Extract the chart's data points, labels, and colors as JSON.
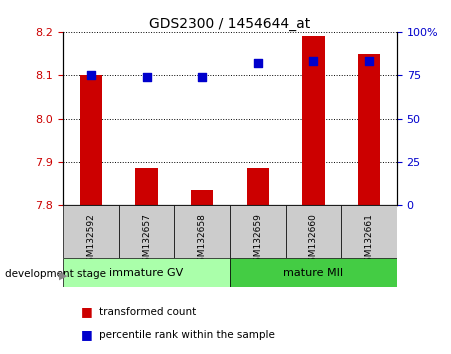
{
  "title": "GDS2300 / 1454644_at",
  "samples": [
    "GSM132592",
    "GSM132657",
    "GSM132658",
    "GSM132659",
    "GSM132660",
    "GSM132661"
  ],
  "red_values": [
    8.1,
    7.885,
    7.835,
    7.885,
    8.19,
    8.15
  ],
  "blue_values": [
    75.0,
    74.0,
    74.0,
    82.0,
    83.0,
    83.0
  ],
  "ylim_left": [
    7.8,
    8.2
  ],
  "ylim_right": [
    0,
    100
  ],
  "yticks_left": [
    7.8,
    7.9,
    8.0,
    8.1,
    8.2
  ],
  "yticks_right": [
    0,
    25,
    50,
    75,
    100
  ],
  "groups": [
    {
      "label": "immature GV",
      "start": 0,
      "end": 3,
      "color": "#aaffaa"
    },
    {
      "label": "mature MII",
      "start": 3,
      "end": 6,
      "color": "#44cc44"
    }
  ],
  "group_label": "development stage",
  "legend_items": [
    {
      "label": "transformed count",
      "color": "#cc0000"
    },
    {
      "label": "percentile rank within the sample",
      "color": "#0000cc"
    }
  ],
  "bar_color": "#cc0000",
  "dot_color": "#0000cc",
  "bar_width": 0.4,
  "dot_size": 30,
  "left_tick_color": "#cc0000",
  "right_tick_color": "#0000cc",
  "sample_box_color": "#cccccc",
  "ytick_label_fontsize": 8,
  "sample_fontsize": 6.5,
  "group_fontsize": 8,
  "legend_fontsize": 7.5,
  "title_fontsize": 10
}
